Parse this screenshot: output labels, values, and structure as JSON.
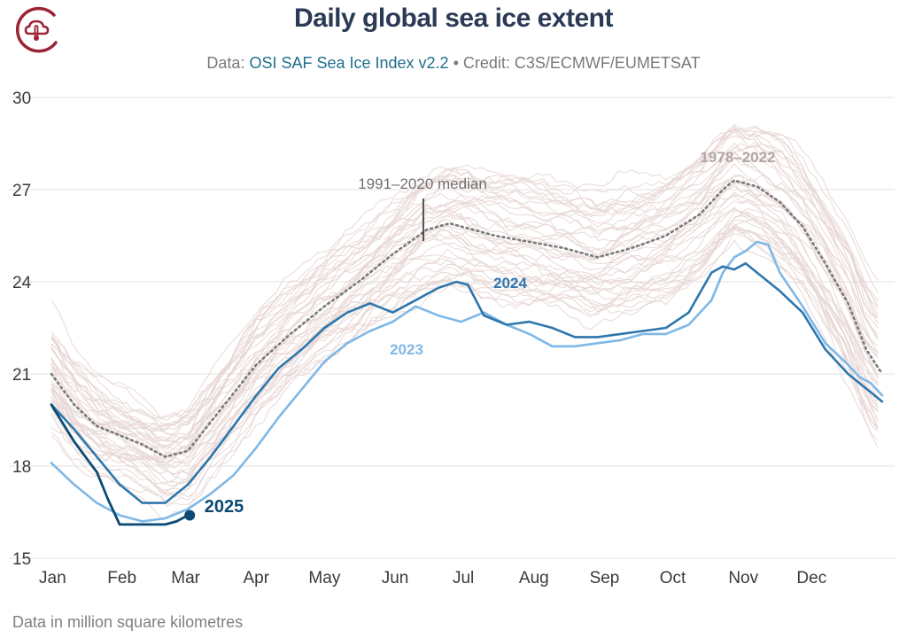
{
  "header": {
    "title": "Daily global sea ice extent",
    "subtitle_prefix": "Data: ",
    "subtitle_source": "OSI SAF Sea Ice Index v2.2",
    "subtitle_credit": " • Credit: C3S/ECMWF/EUMETSAT"
  },
  "footnote": "Data in million square kilometres",
  "colors": {
    "background_years": "#e6d6d3",
    "median": "#7a7a7a",
    "y2023": "#7fb8e6",
    "y2024": "#2e77ad",
    "y2025": "#0c4a73",
    "label_1978": "#b3a5a1",
    "brand": "#9b2335"
  },
  "chart_data": {
    "type": "line",
    "title": "Daily global sea ice extent",
    "xlabel": "",
    "ylabel": "Data in million square kilometres",
    "ylim": [
      15,
      30
    ],
    "yticks": [
      15,
      18,
      21,
      24,
      27,
      30
    ],
    "xlim": [
      0,
      365
    ],
    "grid": true,
    "month_ticks": [
      {
        "label": "Jan",
        "day": 0
      },
      {
        "label": "Feb",
        "day": 31
      },
      {
        "label": "Mar",
        "day": 59
      },
      {
        "label": "Apr",
        "day": 90
      },
      {
        "label": "May",
        "day": 120
      },
      {
        "label": "Jun",
        "day": 151
      },
      {
        "label": "Jul",
        "day": 181
      },
      {
        "label": "Aug",
        "day": 212
      },
      {
        "label": "Sep",
        "day": 243
      },
      {
        "label": "Oct",
        "day": 273
      },
      {
        "label": "Nov",
        "day": 304
      },
      {
        "label": "Dec",
        "day": 334
      }
    ],
    "annotations": {
      "range_label": "1978–2022",
      "median_label": "1991–2020 median",
      "label_2023": "2023",
      "label_2024": "2024",
      "label_2025": "2025"
    },
    "background_band": {
      "name": "1978–2022",
      "count": 45,
      "median_x": [
        0,
        10,
        20,
        30,
        40,
        50,
        60,
        75,
        90,
        105,
        120,
        135,
        150,
        165,
        175,
        185,
        195,
        210,
        225,
        240,
        255,
        270,
        285,
        295,
        300,
        305,
        310,
        320,
        330,
        340,
        350,
        358,
        365
      ],
      "median_y": [
        21.0,
        20.0,
        19.3,
        19.0,
        18.7,
        18.3,
        18.5,
        19.9,
        21.3,
        22.3,
        23.2,
        24.0,
        24.9,
        25.7,
        25.9,
        25.7,
        25.5,
        25.3,
        25.1,
        24.8,
        25.1,
        25.5,
        26.2,
        27.0,
        27.3,
        27.2,
        27.1,
        26.6,
        25.8,
        24.6,
        23.3,
        21.8,
        21.0
      ],
      "spread_x": [
        0,
        40,
        100,
        170,
        250,
        305,
        340,
        365
      ],
      "spread_y": [
        1.8,
        1.5,
        1.7,
        2.0,
        2.1,
        1.8,
        2.2,
        2.4
      ]
    },
    "series": [
      {
        "name": "1991–2020 median",
        "style": "dotted",
        "x": [
          0,
          10,
          20,
          30,
          40,
          50,
          60,
          75,
          90,
          105,
          120,
          135,
          150,
          165,
          175,
          185,
          195,
          210,
          225,
          240,
          255,
          270,
          285,
          295,
          300,
          305,
          310,
          320,
          330,
          340,
          350,
          358,
          365
        ],
        "y": [
          21.0,
          20.0,
          19.3,
          19.0,
          18.7,
          18.3,
          18.5,
          19.9,
          21.3,
          22.3,
          23.2,
          24.0,
          24.9,
          25.7,
          25.9,
          25.7,
          25.5,
          25.3,
          25.1,
          24.8,
          25.1,
          25.5,
          26.2,
          27.0,
          27.3,
          27.2,
          27.1,
          26.6,
          25.8,
          24.6,
          23.3,
          21.8,
          21.0
        ]
      },
      {
        "name": "2023",
        "x": [
          0,
          10,
          20,
          30,
          40,
          50,
          60,
          70,
          80,
          90,
          100,
          110,
          120,
          130,
          140,
          150,
          160,
          170,
          180,
          190,
          200,
          210,
          220,
          230,
          240,
          250,
          260,
          270,
          280,
          290,
          295,
          300,
          305,
          310,
          315,
          320,
          330,
          340,
          350,
          355,
          360,
          365
        ],
        "y": [
          18.1,
          17.4,
          16.8,
          16.4,
          16.2,
          16.3,
          16.6,
          17.1,
          17.7,
          18.6,
          19.6,
          20.5,
          21.4,
          22.0,
          22.4,
          22.7,
          23.2,
          22.9,
          22.7,
          23.0,
          22.6,
          22.3,
          21.9,
          21.9,
          22.0,
          22.1,
          22.3,
          22.3,
          22.6,
          23.4,
          24.3,
          24.8,
          25.0,
          25.3,
          25.2,
          24.3,
          23.2,
          22.0,
          21.3,
          20.9,
          20.7,
          20.3
        ]
      },
      {
        "name": "2024",
        "x": [
          0,
          10,
          20,
          30,
          40,
          50,
          60,
          70,
          80,
          90,
          100,
          110,
          120,
          130,
          140,
          150,
          160,
          170,
          178,
          183,
          190,
          200,
          210,
          220,
          230,
          240,
          250,
          260,
          270,
          280,
          290,
          295,
          300,
          305,
          310,
          315,
          320,
          330,
          340,
          350,
          360,
          365
        ],
        "y": [
          20.0,
          19.2,
          18.3,
          17.4,
          16.8,
          16.8,
          17.4,
          18.3,
          19.3,
          20.3,
          21.2,
          21.8,
          22.5,
          23.0,
          23.3,
          23.0,
          23.4,
          23.8,
          24.0,
          23.9,
          22.9,
          22.6,
          22.7,
          22.5,
          22.2,
          22.2,
          22.3,
          22.4,
          22.5,
          23.0,
          24.3,
          24.5,
          24.4,
          24.6,
          24.3,
          24.0,
          23.7,
          23.0,
          21.8,
          21.0,
          20.4,
          20.1
        ]
      },
      {
        "name": "2025",
        "x": [
          0,
          5,
          10,
          15,
          20,
          25,
          30,
          35,
          40,
          45,
          50,
          55,
          60
        ],
        "y": [
          20.0,
          19.4,
          18.8,
          18.3,
          17.8,
          16.9,
          16.1,
          16.1,
          16.1,
          16.1,
          16.1,
          16.2,
          16.4
        ]
      }
    ]
  }
}
